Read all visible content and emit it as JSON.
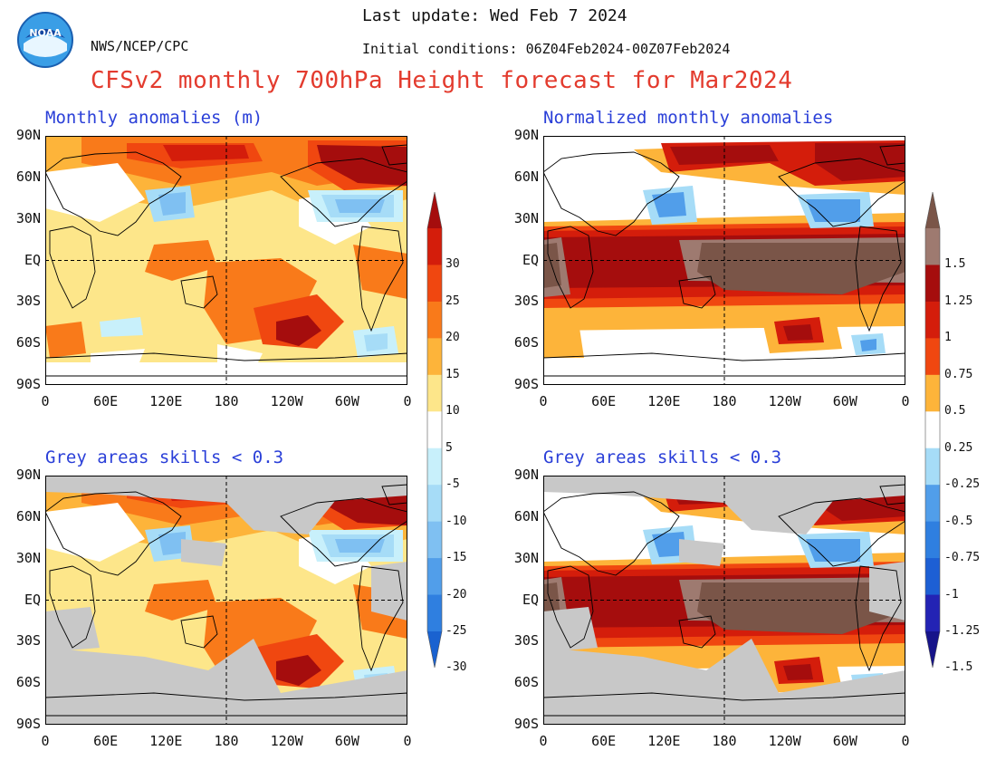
{
  "header": {
    "agency": "NWS/NCEP/CPC",
    "logo_text": "NOAA",
    "last_update": "Last update: Wed Feb 7 2024",
    "initial_conditions": "Initial conditions: 06Z04Feb2024-00Z07Feb2024",
    "title": "CFSv2 monthly 700hPa Height forecast for Mar2024"
  },
  "panels": [
    {
      "id": "top-left",
      "title": "Monthly anomalies (m)",
      "grey": false,
      "scheme": "abs"
    },
    {
      "id": "top-right",
      "title": "Normalized monthly anomalies",
      "grey": false,
      "scheme": "norm"
    },
    {
      "id": "bottom-left",
      "title": "Grey areas skills < 0.3",
      "grey": true,
      "scheme": "abs"
    },
    {
      "id": "bottom-right",
      "title": "Grey areas skills < 0.3",
      "grey": true,
      "scheme": "norm"
    }
  ],
  "axes": {
    "lat_labels": [
      "90N",
      "60N",
      "30N",
      "EQ",
      "30S",
      "60S",
      "90S"
    ],
    "lon_labels": [
      "0",
      "60E",
      "120E",
      "180",
      "120W",
      "60W",
      "0"
    ]
  },
  "colorbars": {
    "absolute": {
      "unit": "m",
      "labels": [
        "30",
        "25",
        "20",
        "15",
        "10",
        "5",
        "-5",
        "-10",
        "-15",
        "-20",
        "-25",
        "-30"
      ],
      "colors": [
        "#a50d0d",
        "#d41d0b",
        "#f04710",
        "#f97a1a",
        "#fdb43a",
        "#fde68a",
        "#ffffff",
        "#c8f0fb",
        "#a6dcf7",
        "#7fc0f2",
        "#519eea",
        "#2f7fe0",
        "#1a62d0"
      ]
    },
    "normalized": {
      "labels": [
        "1.5",
        "1.25",
        "1",
        "0.75",
        "0.5",
        "0.25",
        "-0.25",
        "-0.5",
        "-0.75",
        "-1",
        "-1.25",
        "-1.5"
      ],
      "colors": [
        "#7a5548",
        "#9e7a70",
        "#a50d0d",
        "#d41d0b",
        "#f04710",
        "#fdb43a",
        "#ffffff",
        "#a6dcf7",
        "#519eea",
        "#2f7fe0",
        "#1d5fd4",
        "#2323b4",
        "#17148a"
      ]
    }
  },
  "legend_colors": {
    "grey": "#c8c8c8",
    "title": "#e33b2e",
    "panel_title": "#2a3fd8"
  }
}
